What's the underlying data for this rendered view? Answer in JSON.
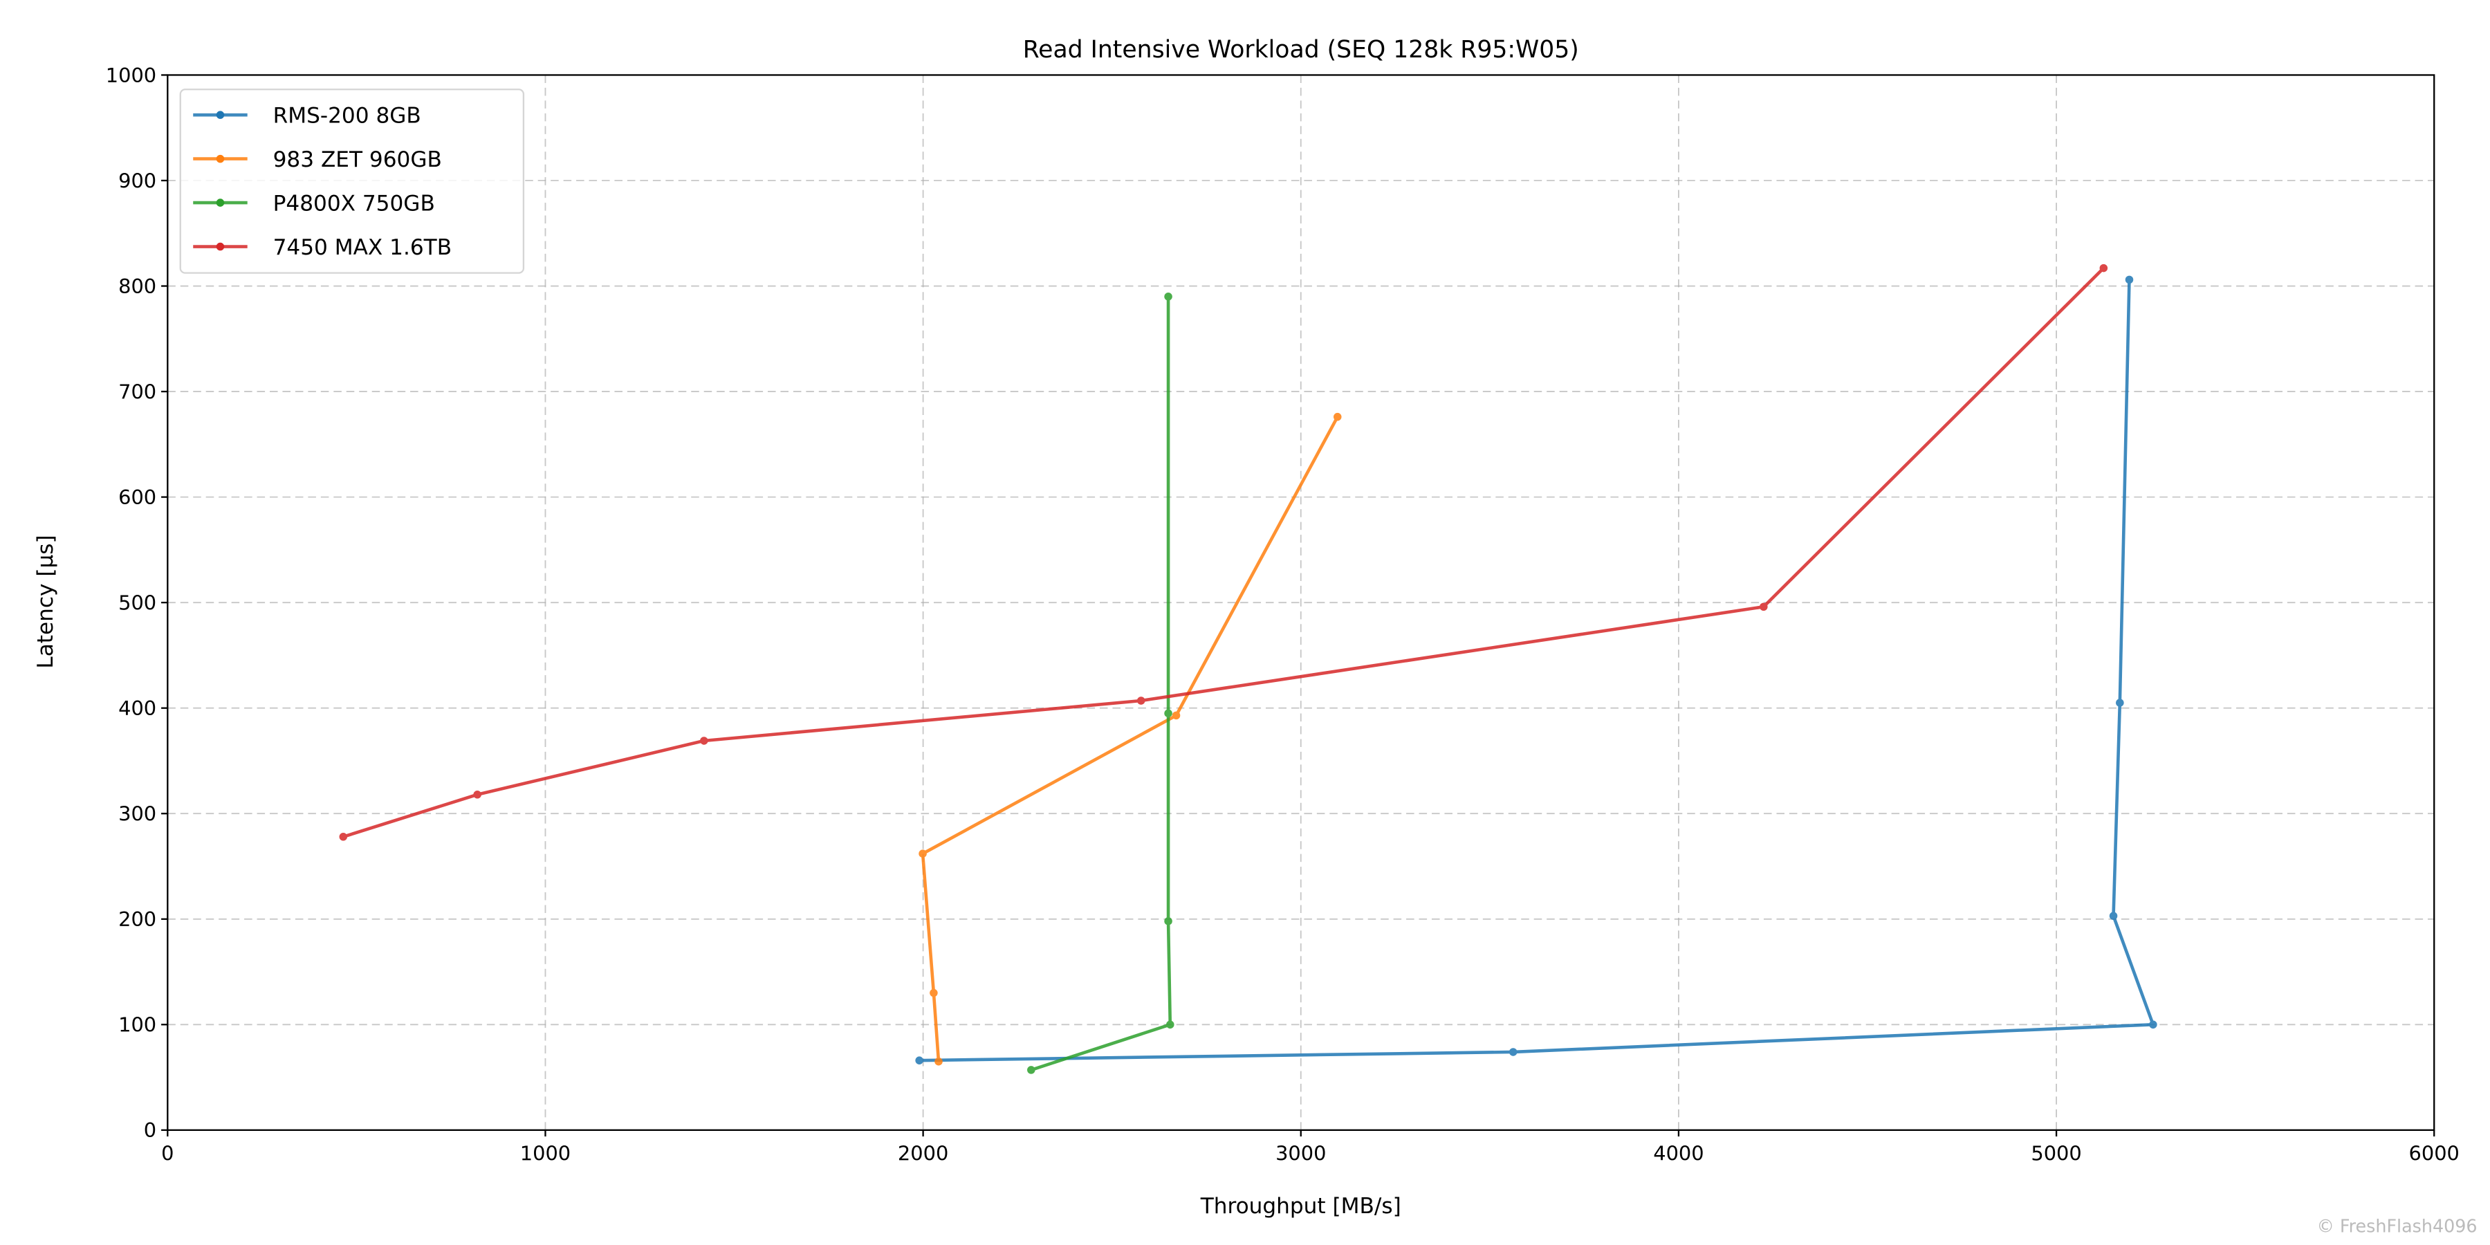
{
  "chart_data": {
    "type": "line",
    "title": "Read Intensive Workload (SEQ 128k R95:W05)",
    "xlabel": "Throughput [MB/s]",
    "ylabel": "Latency [µs]",
    "xlim": [
      0,
      6000
    ],
    "ylim": [
      0,
      1000
    ],
    "xticks": [
      0,
      1000,
      2000,
      3000,
      4000,
      5000,
      6000
    ],
    "yticks": [
      0,
      100,
      200,
      300,
      400,
      500,
      600,
      700,
      800,
      900,
      1000
    ],
    "grid": true,
    "legend_position": "top-left",
    "series": [
      {
        "name": "RMS-200 8GB",
        "color": "#1f77b4",
        "x": [
          1990,
          3562,
          5256,
          5151,
          5168,
          5193
        ],
        "y": [
          66,
          74,
          100,
          203,
          405,
          806
        ]
      },
      {
        "name": "983 ZET 960GB",
        "color": "#ff7f0e",
        "x": [
          2041,
          2028,
          1999,
          2670,
          3097
        ],
        "y": [
          65,
          130,
          262,
          393,
          676
        ]
      },
      {
        "name": "P4800X 750GB",
        "color": "#2ca02c",
        "x": [
          2286,
          2654,
          2649,
          2649,
          2649
        ],
        "y": [
          57,
          100,
          198,
          395,
          790
        ]
      },
      {
        "name": "7450 MAX 1.6TB",
        "color": "#d62728",
        "x": [
          465,
          820,
          1420,
          2577,
          4225,
          5125
        ],
        "y": [
          278,
          318,
          369,
          407,
          496,
          817
        ]
      }
    ]
  },
  "watermark": "© FreshFlash4096"
}
